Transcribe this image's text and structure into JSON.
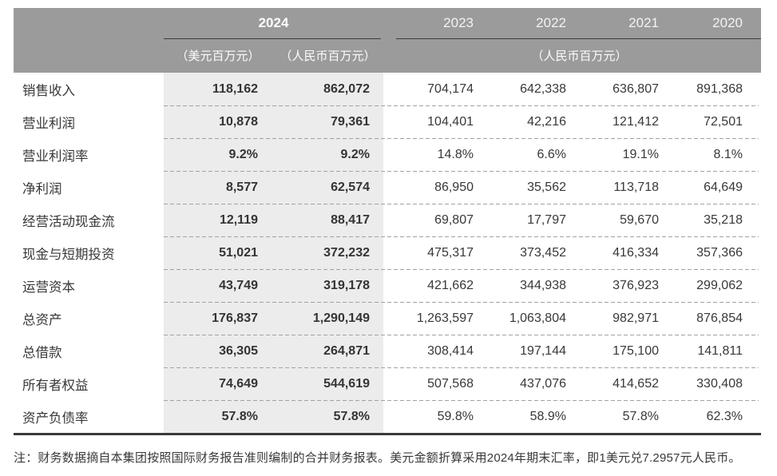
{
  "page": {
    "header": {
      "current_year": "2024",
      "current_unit_usd": "（美元百万元）",
      "current_unit_rmb": "（人民币百万元）",
      "prior_years": [
        "2023",
        "2022",
        "2021",
        "2020"
      ],
      "prior_unit": "（人民币百万元）"
    },
    "rows": [
      {
        "label": "销售收入",
        "values": [
          "118,162",
          "862,072",
          "704,174",
          "642,338",
          "636,807",
          "891,368"
        ]
      },
      {
        "label": "营业利润",
        "values": [
          "10,878",
          "79,361",
          "104,401",
          "42,216",
          "121,412",
          "72,501"
        ]
      },
      {
        "label": "营业利润率",
        "values": [
          "9.2%",
          "9.2%",
          "14.8%",
          "6.6%",
          "19.1%",
          "8.1%"
        ]
      },
      {
        "label": "净利润",
        "values": [
          "8,577",
          "62,574",
          "86,950",
          "35,562",
          "113,718",
          "64,649"
        ]
      },
      {
        "label": "经营活动现金流",
        "values": [
          "12,119",
          "88,417",
          "69,807",
          "17,797",
          "59,670",
          "35,218"
        ]
      },
      {
        "label": "现金与短期投资",
        "values": [
          "51,021",
          "372,232",
          "475,317",
          "373,452",
          "416,334",
          "357,366"
        ]
      },
      {
        "label": "运营资本",
        "values": [
          "43,749",
          "319,178",
          "421,662",
          "344,938",
          "376,923",
          "299,062"
        ]
      },
      {
        "label": "总资产",
        "values": [
          "176,837",
          "1,290,149",
          "1,263,597",
          "1,063,804",
          "982,971",
          "876,854"
        ]
      },
      {
        "label": "总借款",
        "values": [
          "36,305",
          "264,871",
          "308,414",
          "197,144",
          "175,100",
          "141,811"
        ]
      },
      {
        "label": "所有者权益",
        "values": [
          "74,649",
          "544,619",
          "507,568",
          "437,076",
          "414,652",
          "330,408"
        ]
      },
      {
        "label": "资产负债率",
        "values": [
          "57.8%",
          "57.8%",
          "59.8%",
          "58.9%",
          "57.8%",
          "62.3%"
        ]
      }
    ],
    "footnote": "注：财务数据摘自本集团按照国际财务报告准则编制的合并财务报表。美元金额折算采用2024年期末汇率，即1美元兑7.2957元人民币。",
    "colors": {
      "header_bg": "#9b9b9b",
      "highlight_bg": "#ececec",
      "rule_dark": "#3a3a3a",
      "dash": "#a2a2a2",
      "text_dark": "#383838",
      "header_text": "#ffffff"
    }
  }
}
